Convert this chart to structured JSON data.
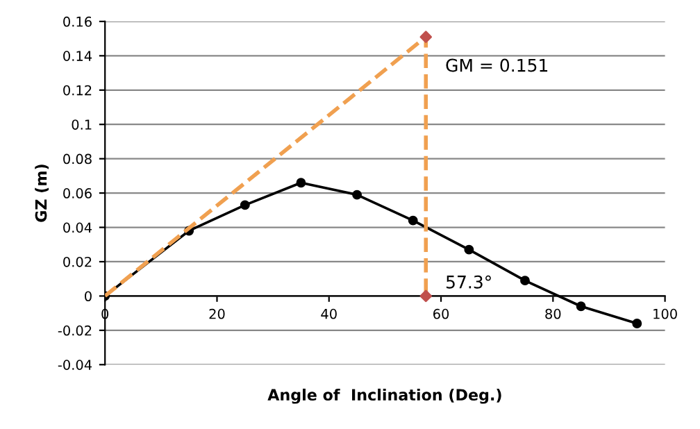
{
  "chart_data": {
    "type": "line",
    "xlabel": "Angle of  Inclination (Deg.)",
    "ylabel": "GZ (m)",
    "xlim": [
      0,
      100
    ],
    "xticks": [
      0,
      20,
      40,
      60,
      80,
      100
    ],
    "ylim": [
      -0.04,
      0.16
    ],
    "yticks": [
      -0.04,
      -0.02,
      0,
      0.02,
      0.04,
      0.06,
      0.08,
      0.1,
      0.12,
      0.14,
      0.16
    ],
    "grid": "y",
    "series": [
      {
        "color": "#000000",
        "marker": "circle",
        "line_style": "solid",
        "x": [
          0,
          15,
          25,
          35,
          45,
          55,
          65,
          75,
          85,
          95
        ],
        "values": [
          0,
          0.038,
          0.053,
          0.066,
          0.059,
          0.044,
          0.027,
          0.009,
          -0.006,
          -0.016
        ]
      },
      {
        "type": "line",
        "color": "#f0a050",
        "marker": "none",
        "line_style": "dashed",
        "x": [
          0,
          57.3,
          57.3
        ],
        "values": [
          0,
          0.151,
          0
        ]
      },
      {
        "type": "scatter",
        "color": "#c0504d",
        "marker": "diamond",
        "x": [
          57.3,
          57.3
        ],
        "values": [
          0.151,
          0
        ]
      }
    ],
    "annotations": [
      {
        "text": "GM = 0.151",
        "x": 57.3,
        "y": 0.151
      },
      {
        "text": "57.3°",
        "x": 57.3,
        "y": 0
      }
    ]
  }
}
